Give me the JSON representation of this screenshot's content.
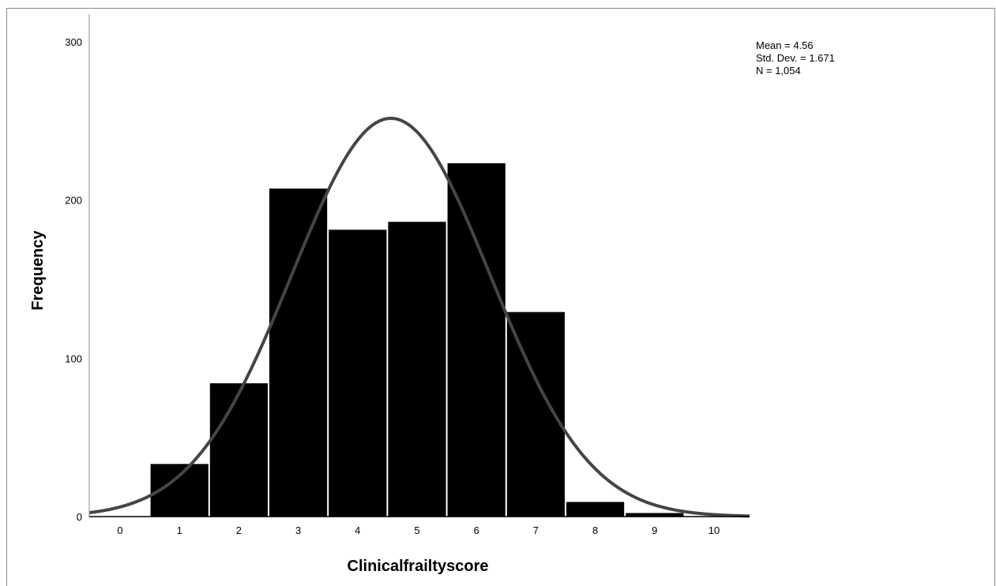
{
  "chart_data": {
    "type": "bar",
    "title": "",
    "xlabel": "Clinicalfrailtyscore",
    "ylabel": "Frequency",
    "x_ticks": [
      "0",
      "1",
      "2",
      "3",
      "4",
      "5",
      "6",
      "7",
      "8",
      "9",
      "10"
    ],
    "y_ticks": [
      "0",
      "100",
      "200",
      "300"
    ],
    "xlim": [
      -0.5,
      10.5
    ],
    "ylim": [
      0,
      300
    ],
    "categories": [
      "1",
      "2",
      "3",
      "4",
      "5",
      "6",
      "7",
      "8",
      "9"
    ],
    "values": [
      33,
      84,
      207,
      181,
      186,
      223,
      129,
      9,
      2
    ],
    "normal_curve": {
      "mean": 4.56,
      "std": 1.671,
      "n": 1054,
      "bin_width": 1
    },
    "stats": {
      "mean": "Mean = 4.56",
      "std": "Std. Dev. = 1.671",
      "n": "N = 1,054"
    },
    "grid": false,
    "colors": {
      "bars": "#000000",
      "curve": "#454545",
      "bar_edge": "#ffffff"
    }
  }
}
